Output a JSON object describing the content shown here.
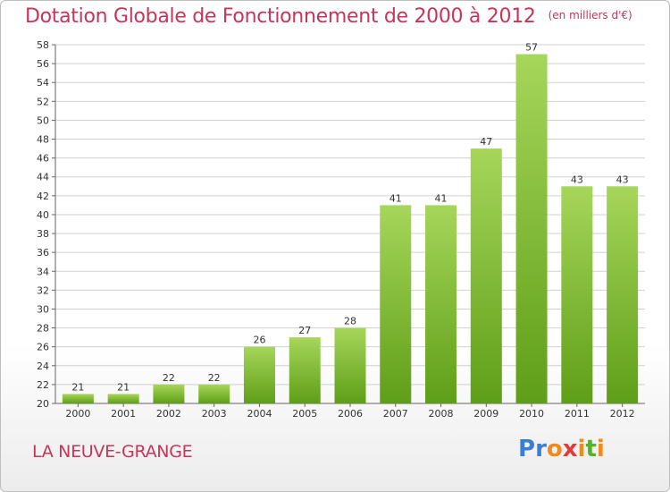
{
  "title": "Dotation Globale de Fonctionnement de 2000 à 2012",
  "unit_note": "(en milliers d'€)",
  "commune": "LA NEUVE-GRANGE",
  "logo": {
    "text": "Proxiti",
    "letters": [
      {
        "ch": "P",
        "color": "#3b7fd0"
      },
      {
        "ch": "r",
        "color": "#3b7fd0"
      },
      {
        "ch": "o",
        "color": "#f08a1c"
      },
      {
        "ch": "x",
        "color": "#e23b3b"
      },
      {
        "ch": "i",
        "color": "#f08a1c"
      },
      {
        "ch": "t",
        "color": "#56b030"
      },
      {
        "ch": "i",
        "color": "#f08a1c"
      }
    ]
  },
  "colors": {
    "title": "#c8345a",
    "bar_top": "#a6d65a",
    "bar_bottom": "#5f9e18",
    "grid": "#d0d0d0",
    "axis_text": "#333333"
  },
  "chart_data": {
    "type": "bar",
    "categories": [
      "2000",
      "2001",
      "2002",
      "2003",
      "2004",
      "2005",
      "2006",
      "2007",
      "2008",
      "2009",
      "2010",
      "2011",
      "2012"
    ],
    "values": [
      21,
      21,
      22,
      22,
      26,
      27,
      28,
      41,
      41,
      47,
      57,
      43,
      43
    ],
    "ylim": [
      20,
      58
    ],
    "ytick_step": 2,
    "grid": true
  }
}
